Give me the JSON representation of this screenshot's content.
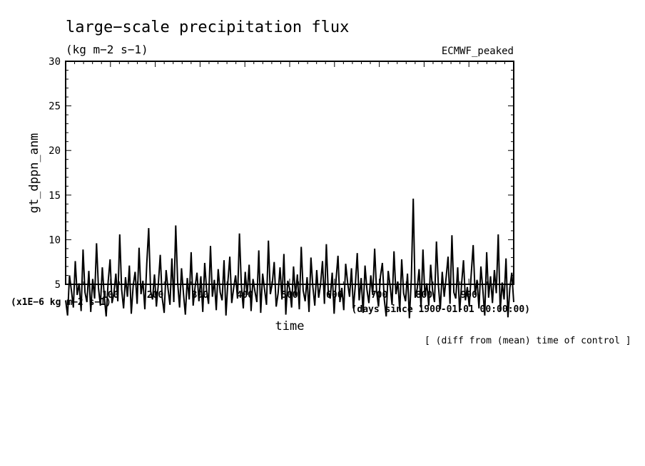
{
  "chart_data": {
    "type": "line",
    "title": "large−scale precipitation flux",
    "units": "(kg m−2 s−1)",
    "experiment": "ECMWF_peaked",
    "ylabel": "gt_dppn_anm",
    "xlabel": "time",
    "scale_note": "(x1E−6 kg m−2 s−1)",
    "x_axis_note": "(days since 1900-01-01 00:00:00)",
    "footnote": "[ (diff from (mean) time of control ]",
    "ylim": [
      5,
      30
    ],
    "yticks": [
      5,
      10,
      15,
      20,
      25,
      30
    ],
    "xlim": [
      0,
      1000
    ],
    "xticks": [
      100,
      200,
      300,
      400,
      500,
      600,
      700,
      800,
      900
    ],
    "grid": false,
    "series": [
      {
        "values": [
          3.2,
          1.5,
          6.0,
          4.3,
          2.4,
          7.6,
          3.8,
          5.1,
          2.0,
          8.9,
          4.1,
          3.0,
          6.5,
          1.9,
          5.6,
          3.4,
          9.6,
          4.6,
          2.6,
          6.9,
          3.7,
          1.4,
          5.3,
          7.8,
          2.9,
          4.0,
          6.2,
          3.1,
          10.6,
          4.4,
          2.3,
          5.8,
          3.6,
          7.1,
          1.7,
          4.9,
          6.4,
          2.8,
          9.1,
          3.9,
          5.4,
          2.2,
          7.3,
          11.3,
          4.2,
          3.3,
          6.1,
          2.5,
          5.0,
          8.3,
          3.5,
          1.8,
          6.6,
          4.5,
          2.7,
          7.9,
          3.0,
          11.6,
          5.2,
          2.4,
          6.8,
          4.0,
          1.6,
          5.7,
          3.3,
          8.6,
          2.6,
          4.7,
          6.3,
          3.1,
          5.9,
          1.9,
          7.4,
          4.3,
          2.8,
          9.3,
          3.6,
          5.5,
          2.1,
          6.7,
          4.1,
          3.2,
          7.7,
          1.5,
          5.3,
          8.1,
          2.9,
          4.6,
          6.0,
          3.4,
          10.7,
          4.8,
          2.3,
          6.4,
          3.8,
          7.2,
          2.0,
          5.6,
          4.2,
          3.0,
          8.8,
          1.8,
          6.2,
          4.4,
          2.7,
          9.9,
          3.9,
          5.1,
          7.5,
          2.5,
          4.0,
          6.9,
          3.3,
          8.4,
          1.6,
          5.4,
          4.5,
          2.4,
          7.0,
          3.7,
          6.1,
          2.2,
          9.2,
          4.3,
          3.1,
          5.8,
          1.9,
          8.0,
          4.7,
          2.6,
          6.6,
          3.5,
          5.0,
          7.6,
          2.8,
          9.5,
          4.1,
          3.4,
          6.3,
          1.7,
          5.5,
          8.2,
          3.0,
          4.6,
          2.1,
          7.3,
          5.2,
          3.6,
          6.8,
          2.3,
          4.9,
          8.5,
          3.2,
          5.7,
          1.8,
          7.1,
          4.4,
          2.9,
          6.0,
          3.8,
          9.0,
          4.2,
          2.5,
          5.9,
          7.4,
          3.3,
          1.4,
          6.5,
          4.8,
          2.7,
          8.7,
          3.9,
          5.3,
          2.0,
          7.8,
          4.0,
          3.1,
          6.2,
          1.2,
          5.6,
          14.6,
          3.5,
          4.5,
          6.7,
          2.4,
          8.9,
          3.7,
          5.1,
          2.6,
          7.2,
          4.3,
          3.0,
          9.8,
          4.9,
          2.2,
          6.4,
          3.6,
          5.8,
          8.1,
          2.8,
          10.5,
          4.1,
          3.4,
          6.9,
          1.9,
          5.0,
          7.7,
          3.2,
          4.7,
          2.5,
          6.1,
          9.4,
          3.8,
          5.5,
          2.3,
          7.0,
          4.4,
          1.5,
          8.6,
          3.5,
          5.9,
          2.9,
          6.6,
          4.0,
          10.6,
          2.0,
          5.2,
          3.3,
          7.9,
          1.3,
          4.6,
          6.3,
          3.0
        ]
      }
    ]
  }
}
